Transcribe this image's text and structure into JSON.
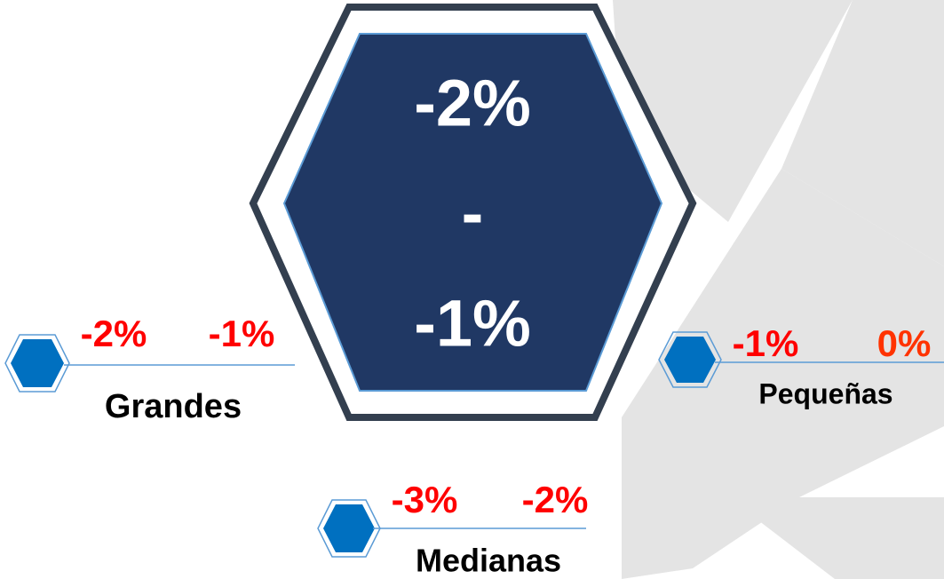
{
  "center": {
    "low": "-2%",
    "separator": "-",
    "high": "-1%"
  },
  "items": [
    {
      "low": "-2%",
      "high": "-1%",
      "label": "Grandes"
    },
    {
      "low": "-1%",
      "high": "0%",
      "label": "Pequeñas"
    },
    {
      "low": "-3%",
      "high": "-2%",
      "label": "Medianas"
    }
  ]
}
